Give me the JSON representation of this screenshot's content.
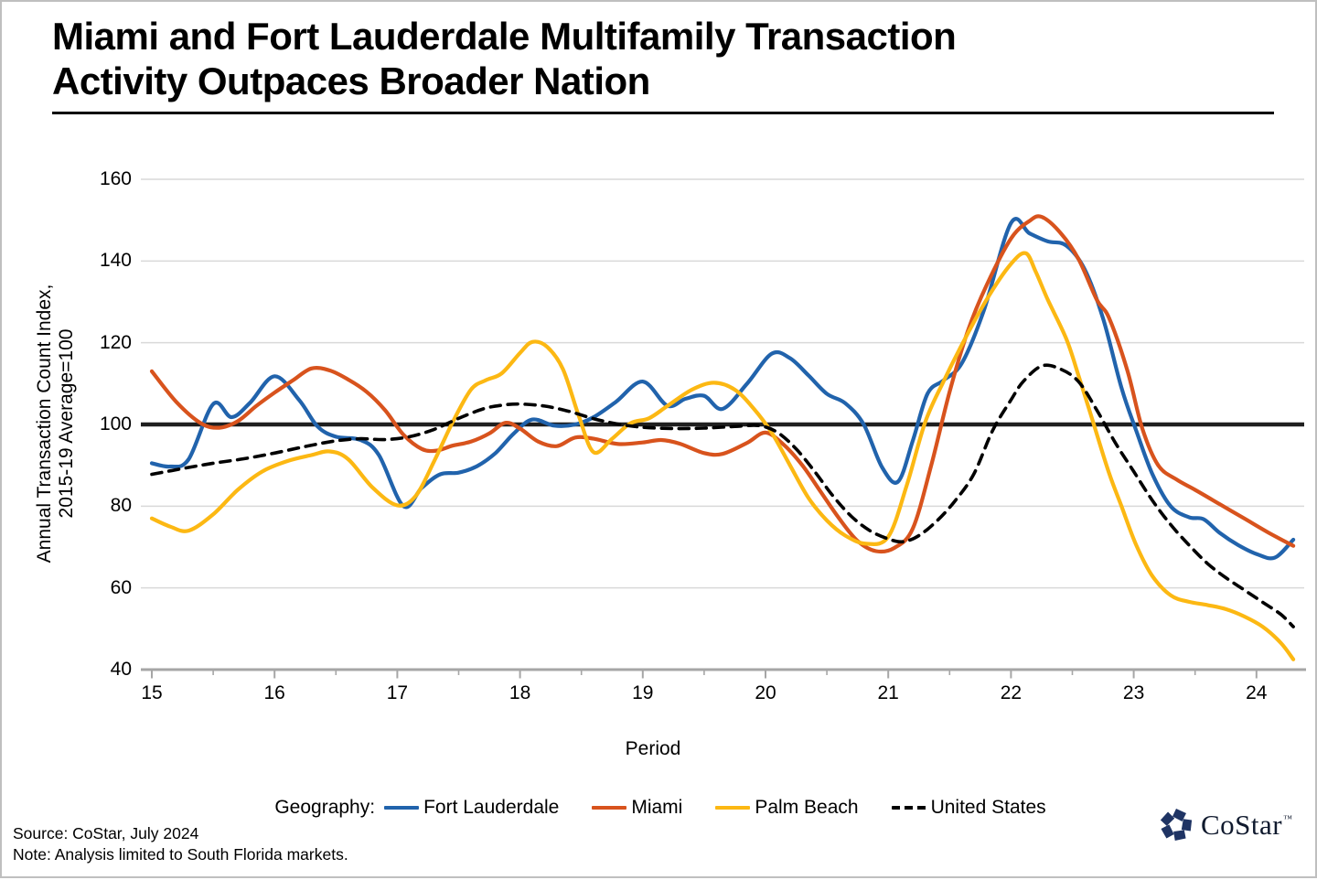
{
  "title": {
    "line1": "Miami and Fort Lauderdale Multifamily Transaction",
    "line2": "Activity Outpaces Broader Nation"
  },
  "y_axis": {
    "label_line1": "Annual Transaction Count Index,",
    "label_line2": "2015-19 Average=100"
  },
  "x_axis": {
    "label": "Period"
  },
  "legend": {
    "prefix": "Geography:"
  },
  "footer": {
    "source": "Source: CoStar, July 2024",
    "note": "Note: Analysis limited to South Florida markets."
  },
  "logo": {
    "text": "CoStar",
    "tm": "™"
  },
  "colors": {
    "fort_lauderdale": "#2163ac",
    "miami": "#d8531d",
    "palm_beach": "#fcb813",
    "united_states": "#000000",
    "gridline": "#d9d9d9",
    "axis": "#a6a6a6",
    "baseline": "#1f1f1f"
  },
  "chart_data": {
    "type": "line",
    "title": "Miami and Fort Lauderdale Multifamily Transaction Activity Outpaces Broader Nation",
    "xlabel": "Period",
    "ylabel": "Annual Transaction Count Index, 2015-19 Average=100",
    "xlim": [
      14.91,
      24.45
    ],
    "ylim": [
      40,
      160
    ],
    "y_ticks": [
      160,
      140,
      120,
      100,
      80,
      60,
      40
    ],
    "x_ticks_major": [
      15,
      16,
      17,
      18,
      19,
      20,
      21,
      22,
      23,
      24
    ],
    "x_ticks_minor": [
      15.5,
      16.5,
      17.5,
      18.5,
      19.5,
      20.5,
      21.5,
      22.5,
      23.5
    ],
    "grid": "horizontal",
    "reference_line_y": 100,
    "legend_position": "bottom",
    "series": [
      {
        "name": "Fort Lauderdale",
        "color": "#2163ac",
        "style": "solid",
        "points": [
          [
            15,
            90.5
          ],
          [
            15.15,
            89.7
          ],
          [
            15.3,
            91.5
          ],
          [
            15.5,
            105
          ],
          [
            15.65,
            101.8
          ],
          [
            15.8,
            105.3
          ],
          [
            16,
            111.8
          ],
          [
            16.2,
            106
          ],
          [
            16.35,
            99.5
          ],
          [
            16.5,
            97
          ],
          [
            16.7,
            96.2
          ],
          [
            16.85,
            92.5
          ],
          [
            17.05,
            80
          ],
          [
            17.2,
            84.5
          ],
          [
            17.35,
            87.8
          ],
          [
            17.5,
            88.2
          ],
          [
            17.65,
            89.8
          ],
          [
            17.8,
            93
          ],
          [
            17.95,
            97.8
          ],
          [
            18.1,
            101.2
          ],
          [
            18.28,
            99.7
          ],
          [
            18.45,
            100
          ],
          [
            18.6,
            101.8
          ],
          [
            18.78,
            105.5
          ],
          [
            19,
            110.5
          ],
          [
            19.2,
            104.6
          ],
          [
            19.35,
            106.3
          ],
          [
            19.5,
            107
          ],
          [
            19.65,
            103.8
          ],
          [
            19.85,
            110
          ],
          [
            20.05,
            117.3
          ],
          [
            20.2,
            116.2
          ],
          [
            20.35,
            112
          ],
          [
            20.5,
            107.5
          ],
          [
            20.65,
            105.2
          ],
          [
            20.8,
            100
          ],
          [
            20.95,
            89.5
          ],
          [
            21.08,
            86
          ],
          [
            21.2,
            96
          ],
          [
            21.32,
            107.5
          ],
          [
            21.45,
            110.8
          ],
          [
            21.6,
            115
          ],
          [
            21.78,
            128
          ],
          [
            22,
            149.3
          ],
          [
            22.15,
            146.8
          ],
          [
            22.3,
            144.8
          ],
          [
            22.45,
            143.8
          ],
          [
            22.6,
            138
          ],
          [
            22.75,
            126
          ],
          [
            22.9,
            109
          ],
          [
            23.02,
            98.5
          ],
          [
            23.15,
            88
          ],
          [
            23.3,
            80
          ],
          [
            23.45,
            77.3
          ],
          [
            23.57,
            76.8
          ],
          [
            23.7,
            73.5
          ],
          [
            23.85,
            70.5
          ],
          [
            24,
            68.3
          ],
          [
            24.15,
            67.4
          ],
          [
            24.3,
            71.8
          ]
        ]
      },
      {
        "name": "Miami",
        "color": "#d8531d",
        "style": "solid",
        "points": [
          [
            15,
            113
          ],
          [
            15.2,
            105.5
          ],
          [
            15.4,
            100.3
          ],
          [
            15.55,
            99.2
          ],
          [
            15.7,
            100.8
          ],
          [
            15.85,
            104.5
          ],
          [
            16,
            107.8
          ],
          [
            16.15,
            110.8
          ],
          [
            16.3,
            113.7
          ],
          [
            16.45,
            113.2
          ],
          [
            16.6,
            111
          ],
          [
            16.75,
            108
          ],
          [
            16.9,
            103.5
          ],
          [
            17.05,
            97.5
          ],
          [
            17.2,
            94
          ],
          [
            17.32,
            93.6
          ],
          [
            17.45,
            94.8
          ],
          [
            17.6,
            95.8
          ],
          [
            17.75,
            97.8
          ],
          [
            17.88,
            100.4
          ],
          [
            18,
            99
          ],
          [
            18.15,
            95.8
          ],
          [
            18.3,
            94.7
          ],
          [
            18.45,
            96.8
          ],
          [
            18.6,
            96.5
          ],
          [
            18.8,
            95.2
          ],
          [
            19,
            95.6
          ],
          [
            19.15,
            96.2
          ],
          [
            19.3,
            95.3
          ],
          [
            19.5,
            93
          ],
          [
            19.65,
            92.8
          ],
          [
            19.85,
            95.5
          ],
          [
            20,
            98
          ],
          [
            20.15,
            95
          ],
          [
            20.3,
            90
          ],
          [
            20.45,
            83.5
          ],
          [
            20.6,
            77
          ],
          [
            20.75,
            71.5
          ],
          [
            20.9,
            69
          ],
          [
            21.05,
            69.8
          ],
          [
            21.2,
            74.5
          ],
          [
            21.35,
            90
          ],
          [
            21.5,
            108
          ],
          [
            21.65,
            123
          ],
          [
            21.8,
            134
          ],
          [
            22,
            145.5
          ],
          [
            22.15,
            149.8
          ],
          [
            22.25,
            150.8
          ],
          [
            22.4,
            147
          ],
          [
            22.55,
            140.5
          ],
          [
            22.7,
            130.5
          ],
          [
            22.8,
            126
          ],
          [
            22.95,
            113
          ],
          [
            23.07,
            99
          ],
          [
            23.2,
            90
          ],
          [
            23.35,
            86.5
          ],
          [
            23.5,
            84
          ],
          [
            23.7,
            80.5
          ],
          [
            23.9,
            77
          ],
          [
            24.1,
            73.5
          ],
          [
            24.3,
            70.3
          ]
        ]
      },
      {
        "name": "Palm Beach",
        "color": "#fcb813",
        "style": "solid",
        "points": [
          [
            15,
            77
          ],
          [
            15.15,
            75
          ],
          [
            15.3,
            74
          ],
          [
            15.5,
            78
          ],
          [
            15.7,
            84
          ],
          [
            15.9,
            88.5
          ],
          [
            16.1,
            91
          ],
          [
            16.3,
            92.5
          ],
          [
            16.45,
            93.4
          ],
          [
            16.6,
            91.5
          ],
          [
            16.8,
            84.5
          ],
          [
            17,
            80.2
          ],
          [
            17.15,
            82.5
          ],
          [
            17.3,
            91
          ],
          [
            17.45,
            100.5
          ],
          [
            17.6,
            108.5
          ],
          [
            17.72,
            110.8
          ],
          [
            17.85,
            112.5
          ],
          [
            18,
            117.5
          ],
          [
            18.1,
            120.2
          ],
          [
            18.22,
            119
          ],
          [
            18.35,
            113.5
          ],
          [
            18.48,
            102
          ],
          [
            18.6,
            93.2
          ],
          [
            18.75,
            96.5
          ],
          [
            18.9,
            100.3
          ],
          [
            19.05,
            101.5
          ],
          [
            19.2,
            104.5
          ],
          [
            19.4,
            108.5
          ],
          [
            19.58,
            110.2
          ],
          [
            19.75,
            108.5
          ],
          [
            19.9,
            104
          ],
          [
            20.05,
            98
          ],
          [
            20.2,
            90
          ],
          [
            20.35,
            82
          ],
          [
            20.5,
            76.5
          ],
          [
            20.65,
            72.8
          ],
          [
            20.82,
            70.8
          ],
          [
            21,
            72.5
          ],
          [
            21.15,
            85
          ],
          [
            21.3,
            100.5
          ],
          [
            21.45,
            110.5
          ],
          [
            21.6,
            119.5
          ],
          [
            21.8,
            130.5
          ],
          [
            22,
            139.3
          ],
          [
            22.12,
            141.9
          ],
          [
            22.2,
            137.5
          ],
          [
            22.3,
            130.5
          ],
          [
            22.45,
            121
          ],
          [
            22.55,
            112
          ],
          [
            22.68,
            99.5
          ],
          [
            22.8,
            88
          ],
          [
            22.9,
            80
          ],
          [
            23.02,
            70.5
          ],
          [
            23.15,
            63
          ],
          [
            23.3,
            58.2
          ],
          [
            23.45,
            56.6
          ],
          [
            23.6,
            55.8
          ],
          [
            23.75,
            54.8
          ],
          [
            23.9,
            53
          ],
          [
            24.05,
            50.5
          ],
          [
            24.2,
            46.5
          ],
          [
            24.3,
            42.5
          ]
        ]
      },
      {
        "name": "United States",
        "color": "#000000",
        "style": "dashed",
        "points": [
          [
            15,
            87.8
          ],
          [
            15.25,
            89.2
          ],
          [
            15.5,
            90.5
          ],
          [
            15.75,
            91.6
          ],
          [
            16,
            93
          ],
          [
            16.25,
            94.6
          ],
          [
            16.5,
            96
          ],
          [
            16.7,
            96.5
          ],
          [
            16.9,
            96.3
          ],
          [
            17.1,
            97
          ],
          [
            17.3,
            98.8
          ],
          [
            17.5,
            101.5
          ],
          [
            17.7,
            103.8
          ],
          [
            17.85,
            104.7
          ],
          [
            18,
            105
          ],
          [
            18.2,
            104.5
          ],
          [
            18.4,
            103.2
          ],
          [
            18.6,
            101.4
          ],
          [
            18.8,
            100.1
          ],
          [
            19,
            99.3
          ],
          [
            19.25,
            99
          ],
          [
            19.5,
            99.1
          ],
          [
            19.75,
            99.5
          ],
          [
            19.95,
            99.7
          ],
          [
            20.1,
            98
          ],
          [
            20.25,
            94
          ],
          [
            20.4,
            88.5
          ],
          [
            20.55,
            82.5
          ],
          [
            20.7,
            77.5
          ],
          [
            20.85,
            74
          ],
          [
            21,
            72
          ],
          [
            21.12,
            71.3
          ],
          [
            21.25,
            72.8
          ],
          [
            21.4,
            76.5
          ],
          [
            21.55,
            81.5
          ],
          [
            21.7,
            88
          ],
          [
            21.85,
            98.5
          ],
          [
            22,
            106
          ],
          [
            22.1,
            110.5
          ],
          [
            22.25,
            114.3
          ],
          [
            22.4,
            113.6
          ],
          [
            22.55,
            110.5
          ],
          [
            22.7,
            103.5
          ],
          [
            22.85,
            95.5
          ],
          [
            23,
            88.5
          ],
          [
            23.15,
            81.5
          ],
          [
            23.3,
            75.5
          ],
          [
            23.45,
            70.5
          ],
          [
            23.6,
            66
          ],
          [
            23.75,
            62.5
          ],
          [
            23.9,
            59.5
          ],
          [
            24.05,
            56.5
          ],
          [
            24.2,
            53.5
          ],
          [
            24.3,
            50.5
          ]
        ]
      }
    ]
  }
}
